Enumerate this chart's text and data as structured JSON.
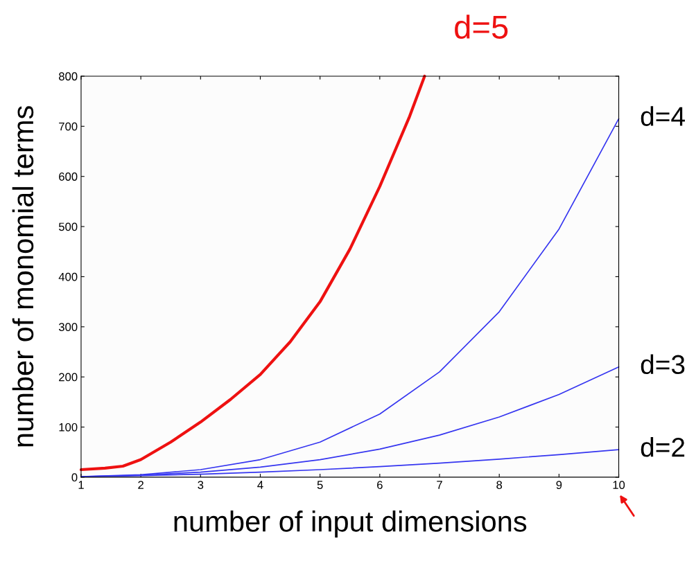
{
  "chart_data": {
    "type": "line",
    "xlabel": "number of input dimensions",
    "ylabel": "number of monomial terms",
    "x": [
      1,
      2,
      3,
      4,
      5,
      6,
      7,
      8,
      9,
      10
    ],
    "series": [
      {
        "name": "d=2",
        "color": "#3535f0",
        "values": [
          1,
          3,
          6,
          10,
          15,
          21,
          28,
          36,
          45,
          55
        ]
      },
      {
        "name": "d=3",
        "color": "#3535f0",
        "values": [
          1,
          4,
          10,
          20,
          35,
          56,
          84,
          120,
          165,
          220
        ]
      },
      {
        "name": "d=4",
        "color": "#3535f0",
        "values": [
          1,
          5,
          15,
          35,
          70,
          126,
          210,
          330,
          495,
          715
        ]
      },
      {
        "name": "d=5",
        "color": "#ee1111",
        "x": [
          1,
          1.4,
          1.7,
          2,
          2.5,
          3,
          3.5,
          4,
          4.5,
          5,
          5.5,
          6,
          6.5,
          6.75
        ],
        "values": [
          15,
          18,
          22,
          35,
          70,
          110,
          155,
          205,
          270,
          350,
          455,
          580,
          720,
          800
        ]
      }
    ],
    "xlim": [
      1,
      10
    ],
    "xticks": [
      1,
      2,
      3,
      4,
      5,
      6,
      7,
      8,
      9,
      10
    ],
    "ylim": [
      0,
      800
    ],
    "yticks": [
      0,
      100,
      200,
      300,
      400,
      500,
      600,
      700,
      800
    ],
    "grid": false,
    "legend": false,
    "marker": "none",
    "line_style": "solid"
  }
}
